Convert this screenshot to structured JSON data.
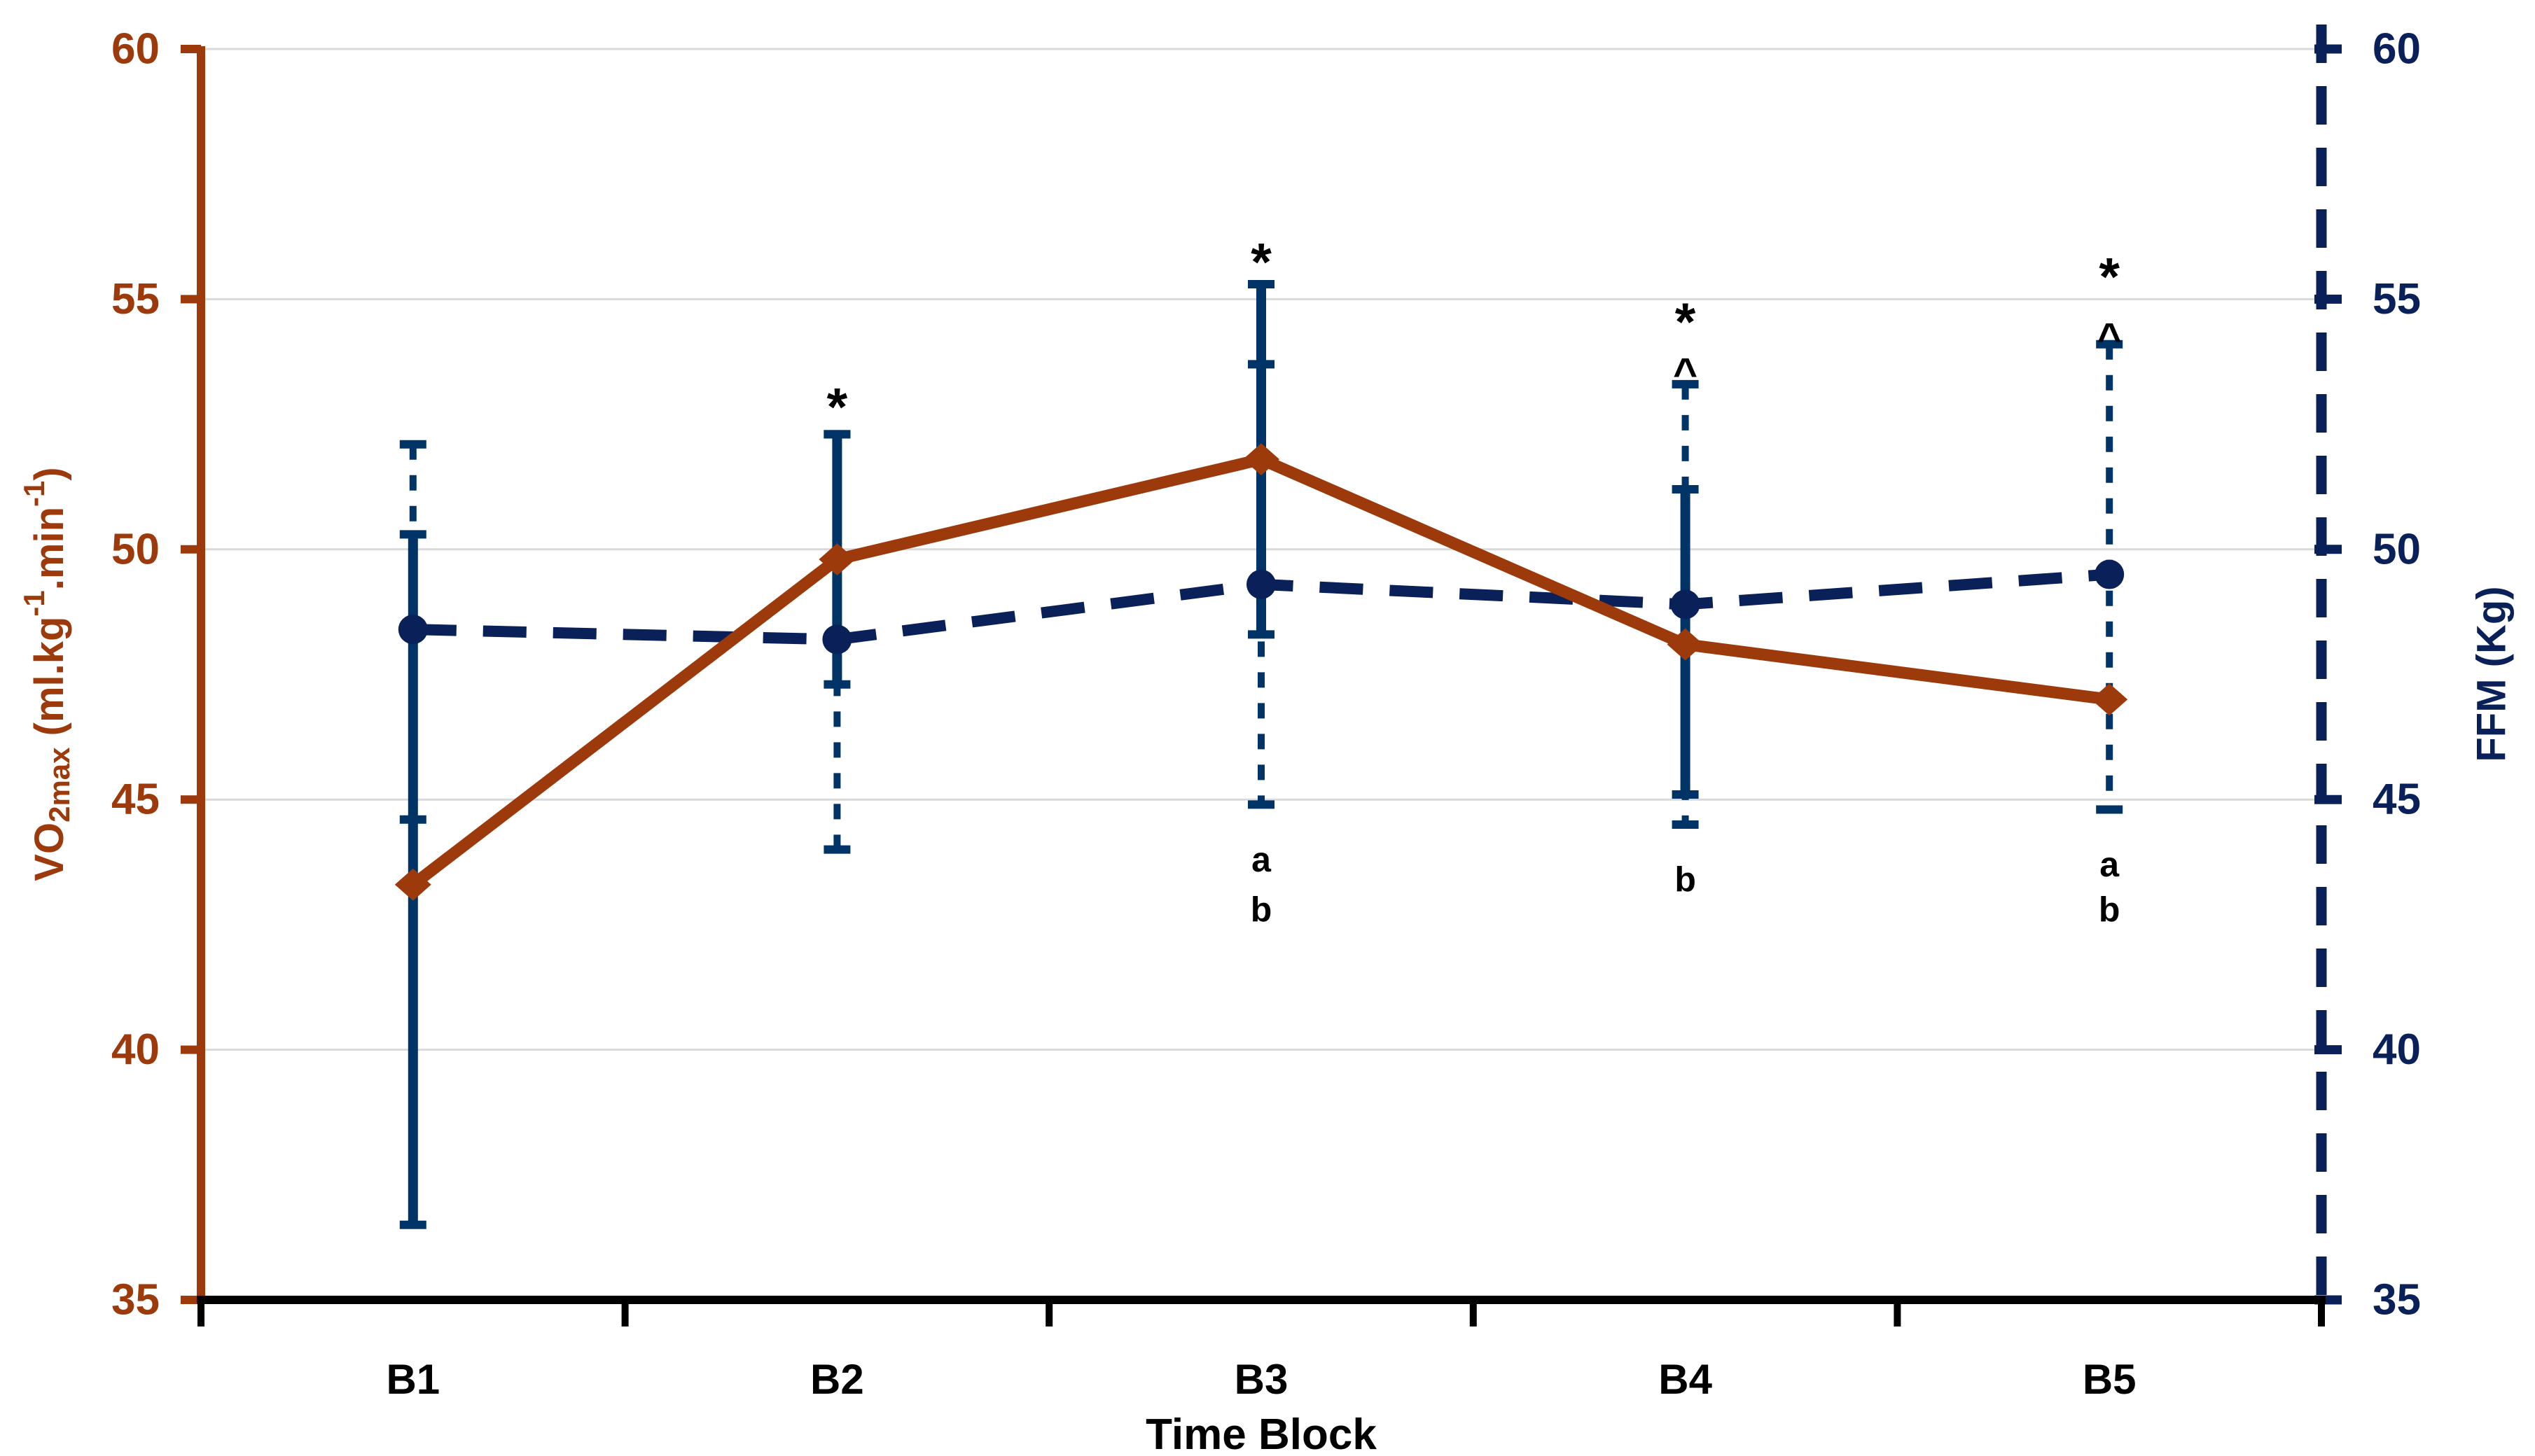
{
  "chart_data": {
    "type": "line",
    "description": "Dual-axis line chart of VO2max (left axis, solid brown line with diamond markers) and FFM (right axis, dashed navy line with circle markers) across five time blocks, with error bars and significance annotations",
    "categories": [
      "B1",
      "B2",
      "B3",
      "B4",
      "B5"
    ],
    "x_axis": {
      "title": "Time Block",
      "color": "#000000"
    },
    "y_left_axis": {
      "title_parts": [
        {
          "text": "VO",
          "format": "normal"
        },
        {
          "text": "2max",
          "format": "subscript"
        },
        {
          "text": " (ml.kg",
          "format": "normal"
        },
        {
          "text": "-1",
          "format": "superscript"
        },
        {
          "text": ".min",
          "format": "normal"
        },
        {
          "text": "-1",
          "format": "superscript"
        },
        {
          "text": ")",
          "format": "normal"
        }
      ],
      "min": 35,
      "max": 60,
      "step": 5,
      "ticks": [
        35,
        40,
        45,
        50,
        55,
        60
      ],
      "color": "#9C3A0B",
      "line_style": "solid"
    },
    "y_right_axis": {
      "title": "FFM (Kg)",
      "min": 35,
      "max": 60,
      "step": 5,
      "ticks": [
        35,
        40,
        45,
        50,
        55,
        60
      ],
      "color": "#0A2058",
      "line_style": "dashed"
    },
    "grid": {
      "show": true,
      "color": "#D9D9D9",
      "orientation": "horizontal"
    },
    "legend": {
      "show": false
    },
    "series": [
      {
        "name": "VO2max",
        "axis": "left",
        "color": "#9C3A0B",
        "line_style": "solid",
        "marker": "diamond",
        "values": [
          43.3,
          49.8,
          51.8,
          48.1,
          47.0
        ],
        "error_bars": {
          "style": "solid",
          "color": "#003366",
          "upper": [
            50.3,
            52.3,
            55.3,
            51.2,
            null
          ],
          "lower": [
            36.5,
            47.3,
            48.3,
            45.1,
            null
          ]
        }
      },
      {
        "name": "FFM",
        "axis": "right",
        "color": "#0A2058",
        "line_style": "dashed",
        "marker": "circle",
        "values": [
          48.4,
          48.2,
          49.3,
          48.9,
          49.5
        ],
        "error_bars": {
          "style": "dashed",
          "color": "#003366",
          "upper": [
            52.1,
            52.3,
            53.7,
            53.3,
            54.1
          ],
          "lower": [
            44.6,
            44.0,
            44.9,
            44.5,
            44.8
          ]
        }
      }
    ],
    "annotations": [
      {
        "category": "B2",
        "text": "*",
        "value": 53.2
      },
      {
        "category": "B3",
        "text": "*",
        "value": 56.1
      },
      {
        "category": "B3",
        "text": "a",
        "value": 43.8
      },
      {
        "category": "B3",
        "text": "b",
        "value": 42.8
      },
      {
        "category": "B4",
        "text": "*",
        "value": 54.9
      },
      {
        "category": "B4",
        "text": "^",
        "value": 53.8
      },
      {
        "category": "B4",
        "text": "b",
        "value": 43.4
      },
      {
        "category": "B5",
        "text": "*",
        "value": 55.8
      },
      {
        "category": "B5",
        "text": "^",
        "value": 54.5
      },
      {
        "category": "B5",
        "text": "a",
        "value": 43.7
      },
      {
        "category": "B5",
        "text": "b",
        "value": 42.8
      }
    ]
  }
}
